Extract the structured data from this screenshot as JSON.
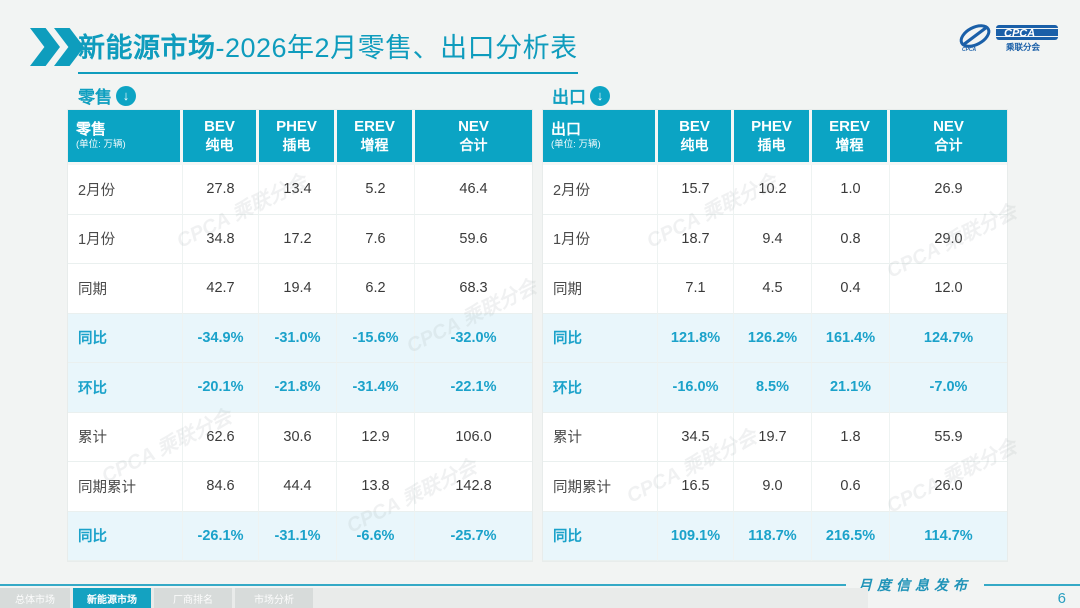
{
  "header": {
    "title_bold": "新能源市场",
    "title_rest": "-2026年2月零售、出口分析表"
  },
  "logo": {
    "name": "CPCA",
    "sub": "乘联分会"
  },
  "watermark_text": "CPCA 乘联分会",
  "colors": {
    "teal": "#0ba4c4",
    "title_teal": "#0f9cbd",
    "highlight_bg": "#e9f6fb",
    "highlight_text": "#1ba2ca",
    "page_bg": "#f2f4f3",
    "logo_blue": "#1a5fa8"
  },
  "tables": [
    {
      "section_label": "零售",
      "corner_label": "零售",
      "unit": "(单位: 万辆)",
      "columns": [
        {
          "en": "BEV",
          "zh": "纯电"
        },
        {
          "en": "PHEV",
          "zh": "插电"
        },
        {
          "en": "EREV",
          "zh": "增程"
        },
        {
          "en": "NEV",
          "zh": "合计"
        }
      ],
      "rows": [
        {
          "label": "2月份",
          "values": [
            "27.8",
            "13.4",
            "5.2",
            "46.4"
          ],
          "highlight": false
        },
        {
          "label": "1月份",
          "values": [
            "34.8",
            "17.2",
            "7.6",
            "59.6"
          ],
          "highlight": false
        },
        {
          "label": "同期",
          "values": [
            "42.7",
            "19.4",
            "6.2",
            "68.3"
          ],
          "highlight": false
        },
        {
          "label": "同比",
          "values": [
            "-34.9%",
            "-31.0%",
            "-15.6%",
            "-32.0%"
          ],
          "highlight": true
        },
        {
          "label": "环比",
          "values": [
            "-20.1%",
            "-21.8%",
            "-31.4%",
            "-22.1%"
          ],
          "highlight": true
        },
        {
          "label": "累计",
          "values": [
            "62.6",
            "30.6",
            "12.9",
            "106.0"
          ],
          "highlight": false
        },
        {
          "label": "同期累计",
          "values": [
            "84.6",
            "44.4",
            "13.8",
            "142.8"
          ],
          "highlight": false
        },
        {
          "label": "同比",
          "values": [
            "-26.1%",
            "-31.1%",
            "-6.6%",
            "-25.7%"
          ],
          "highlight": true
        }
      ]
    },
    {
      "section_label": "出口",
      "corner_label": "出口",
      "unit": "(单位: 万辆)",
      "columns": [
        {
          "en": "BEV",
          "zh": "纯电"
        },
        {
          "en": "PHEV",
          "zh": "插电"
        },
        {
          "en": "EREV",
          "zh": "增程"
        },
        {
          "en": "NEV",
          "zh": "合计"
        }
      ],
      "rows": [
        {
          "label": "2月份",
          "values": [
            "15.7",
            "10.2",
            "1.0",
            "26.9"
          ],
          "highlight": false
        },
        {
          "label": "1月份",
          "values": [
            "18.7",
            "9.4",
            "0.8",
            "29.0"
          ],
          "highlight": false
        },
        {
          "label": "同期",
          "values": [
            "7.1",
            "4.5",
            "0.4",
            "12.0"
          ],
          "highlight": false
        },
        {
          "label": "同比",
          "values": [
            "121.8%",
            "126.2%",
            "161.4%",
            "124.7%"
          ],
          "highlight": true
        },
        {
          "label": "环比",
          "values": [
            "-16.0%",
            "8.5%",
            "21.1%",
            "-7.0%"
          ],
          "highlight": true
        },
        {
          "label": "累计",
          "values": [
            "34.5",
            "19.7",
            "1.8",
            "55.9"
          ],
          "highlight": false
        },
        {
          "label": "同期累计",
          "values": [
            "16.5",
            "9.0",
            "0.6",
            "26.0"
          ],
          "highlight": false
        },
        {
          "label": "同比",
          "values": [
            "109.1%",
            "118.7%",
            "216.5%",
            "114.7%"
          ],
          "highlight": true
        }
      ]
    }
  ],
  "footer": {
    "tabs": [
      {
        "label": "总体市场",
        "active": false
      },
      {
        "label": "新能源市场",
        "active": true
      },
      {
        "label": "厂商排名",
        "active": false
      },
      {
        "label": "市场分析",
        "active": false
      }
    ],
    "publication": "月度信息发布",
    "page_number": "6"
  }
}
